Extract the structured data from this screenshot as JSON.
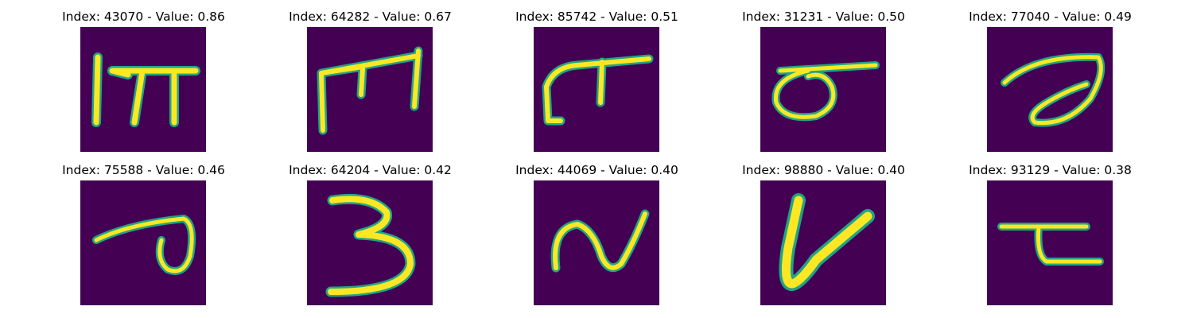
{
  "panels": [
    {
      "index": "43070",
      "value": "0.86",
      "title": "Index: 43070 - Value: 0.86"
    },
    {
      "index": "64282",
      "value": "0.67",
      "title": "Index: 64282 - Value: 0.67"
    },
    {
      "index": "85742",
      "value": "0.51",
      "title": "Index: 85742 - Value: 0.51"
    },
    {
      "index": "31231",
      "value": "0.50",
      "title": "Index: 31231 - Value: 0.50"
    },
    {
      "index": "77040",
      "value": "0.49",
      "title": "Index: 77040 - Value: 0.49"
    },
    {
      "index": "75588",
      "value": "0.46",
      "title": "Index: 75588 - Value: 0.46"
    },
    {
      "index": "64204",
      "value": "0.42",
      "title": "Index: 64204 - Value: 0.42"
    },
    {
      "index": "44069",
      "value": "0.40",
      "title": "Index: 44069 - Value: 0.40"
    },
    {
      "index": "98880",
      "value": "0.40",
      "title": "Index: 98880 - Value: 0.40"
    },
    {
      "index": "93129",
      "value": "0.38",
      "title": "Index: 93129 - Value: 0.38"
    }
  ],
  "colors": {
    "background": "#440154",
    "stroke_core": "#fde725",
    "stroke_edge": "#21a585"
  }
}
